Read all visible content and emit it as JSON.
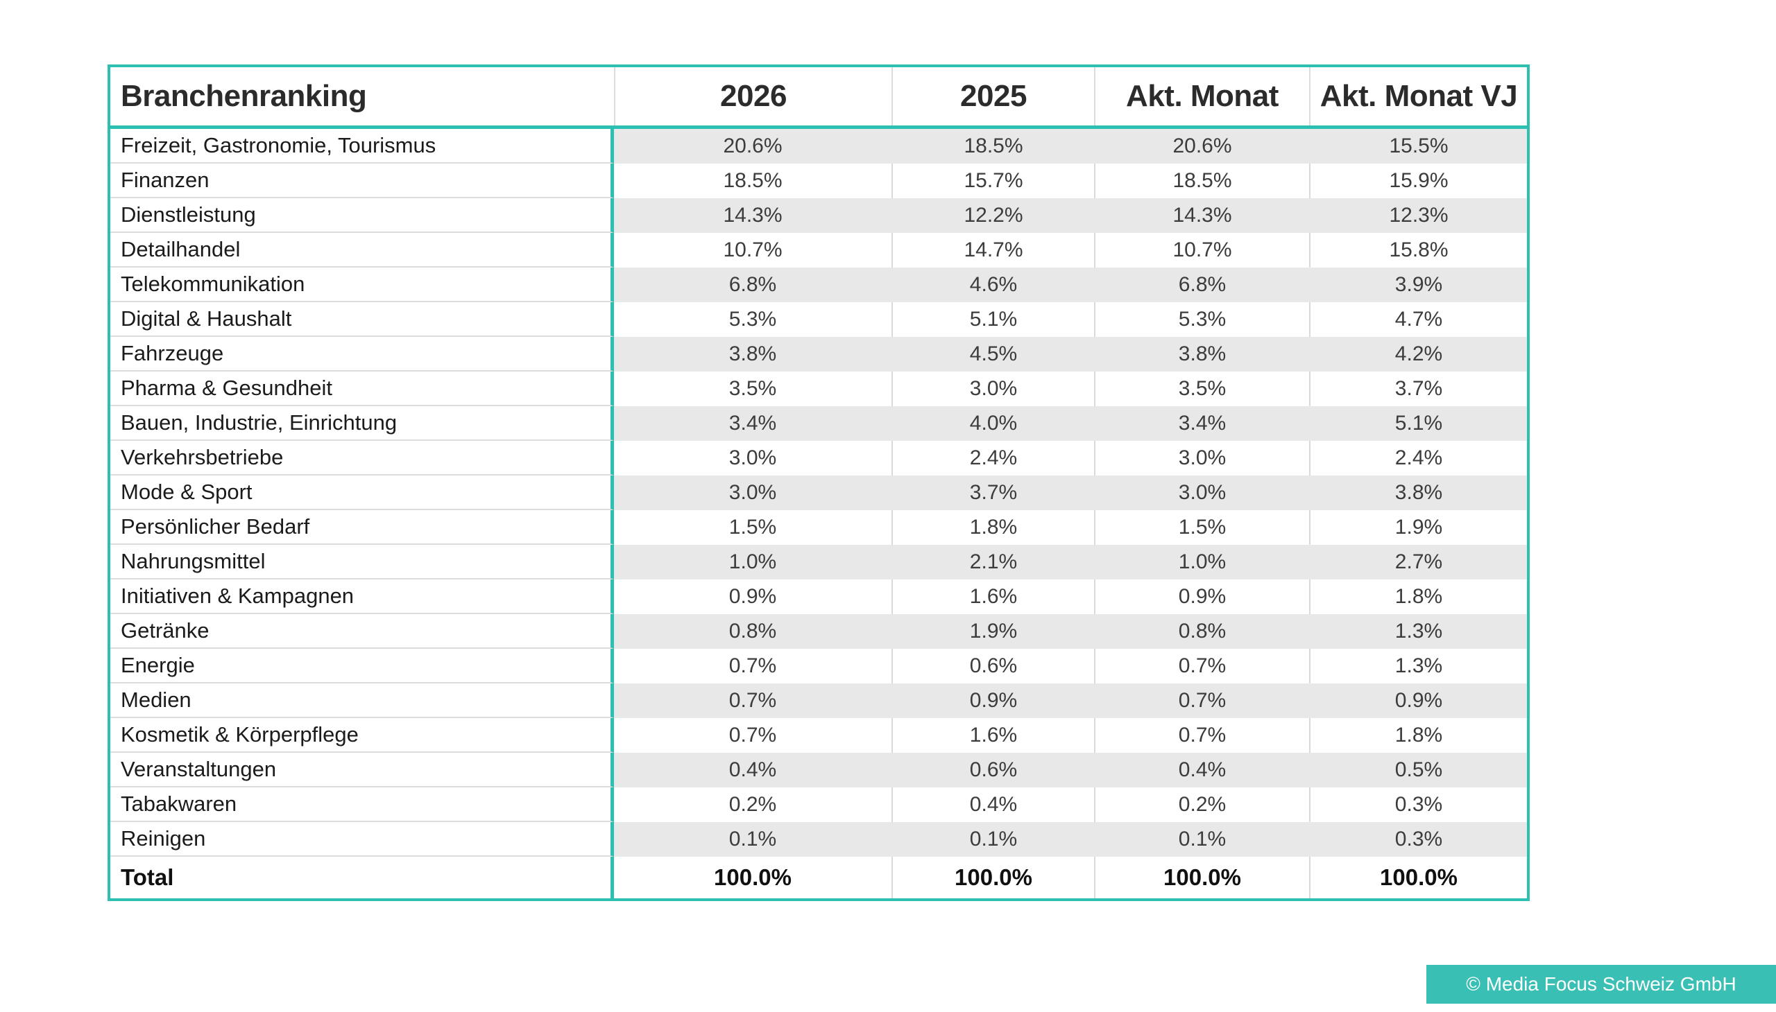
{
  "chart_data": {
    "type": "table",
    "title": "Branchenranking",
    "columns": [
      "2026",
      "2025",
      "Akt. Monat",
      "Akt. Monat VJ"
    ],
    "rows": [
      {
        "label": "Freizeit, Gastronomie, Tourismus",
        "values": [
          "20.6%",
          "18.5%",
          "20.6%",
          "15.5%"
        ]
      },
      {
        "label": "Finanzen",
        "values": [
          "18.5%",
          "15.7%",
          "18.5%",
          "15.9%"
        ]
      },
      {
        "label": "Dienstleistung",
        "values": [
          "14.3%",
          "12.2%",
          "14.3%",
          "12.3%"
        ]
      },
      {
        "label": "Detailhandel",
        "values": [
          "10.7%",
          "14.7%",
          "10.7%",
          "15.8%"
        ]
      },
      {
        "label": "Telekommunikation",
        "values": [
          "6.8%",
          "4.6%",
          "6.8%",
          "3.9%"
        ]
      },
      {
        "label": "Digital & Haushalt",
        "values": [
          "5.3%",
          "5.1%",
          "5.3%",
          "4.7%"
        ]
      },
      {
        "label": "Fahrzeuge",
        "values": [
          "3.8%",
          "4.5%",
          "3.8%",
          "4.2%"
        ]
      },
      {
        "label": "Pharma & Gesundheit",
        "values": [
          "3.5%",
          "3.0%",
          "3.5%",
          "3.7%"
        ]
      },
      {
        "label": "Bauen, Industrie, Einrichtung",
        "values": [
          "3.4%",
          "4.0%",
          "3.4%",
          "5.1%"
        ]
      },
      {
        "label": "Verkehrsbetriebe",
        "values": [
          "3.0%",
          "2.4%",
          "3.0%",
          "2.4%"
        ]
      },
      {
        "label": "Mode & Sport",
        "values": [
          "3.0%",
          "3.7%",
          "3.0%",
          "3.8%"
        ]
      },
      {
        "label": "Persönlicher Bedarf",
        "values": [
          "1.5%",
          "1.8%",
          "1.5%",
          "1.9%"
        ]
      },
      {
        "label": "Nahrungsmittel",
        "values": [
          "1.0%",
          "2.1%",
          "1.0%",
          "2.7%"
        ]
      },
      {
        "label": "Initiativen & Kampagnen",
        "values": [
          "0.9%",
          "1.6%",
          "0.9%",
          "1.8%"
        ]
      },
      {
        "label": "Getränke",
        "values": [
          "0.8%",
          "1.9%",
          "0.8%",
          "1.3%"
        ]
      },
      {
        "label": "Energie",
        "values": [
          "0.7%",
          "0.6%",
          "0.7%",
          "1.3%"
        ]
      },
      {
        "label": "Medien",
        "values": [
          "0.7%",
          "0.9%",
          "0.7%",
          "0.9%"
        ]
      },
      {
        "label": "Kosmetik & Körperpflege",
        "values": [
          "0.7%",
          "1.6%",
          "0.7%",
          "1.8%"
        ]
      },
      {
        "label": "Veranstaltungen",
        "values": [
          "0.4%",
          "0.6%",
          "0.4%",
          "0.5%"
        ]
      },
      {
        "label": "Tabakwaren",
        "values": [
          "0.2%",
          "0.4%",
          "0.2%",
          "0.3%"
        ]
      },
      {
        "label": "Reinigen",
        "values": [
          "0.1%",
          "0.1%",
          "0.1%",
          "0.3%"
        ]
      }
    ],
    "total": {
      "label": "Total",
      "values": [
        "100.0%",
        "100.0%",
        "100.0%",
        "100.0%"
      ]
    },
    "legend_position": "none",
    "grid": "zebra-striped numeric columns, teal table frame"
  },
  "footer": {
    "copyright": "© Media Focus Schweiz GmbH"
  },
  "colors": {
    "accent_teal": "#2CBFB2",
    "badge_teal": "#3ABFB4",
    "zebra_gray": "#E8E8E8"
  }
}
